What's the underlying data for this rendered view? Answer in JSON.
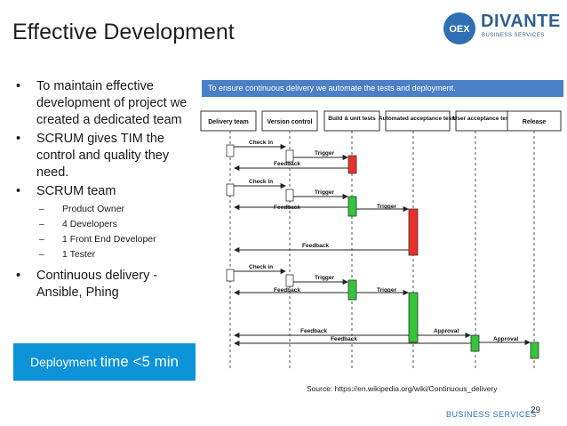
{
  "title": "Effective Development",
  "logo": {
    "mark": "OEX",
    "name": "DIVANTE",
    "tagline": "BUSINESS SERVICES"
  },
  "bullets": [
    "To maintain effective development of project we created a dedicated team",
    "SCRUM gives TIM the control and quality they need.",
    "SCRUM team"
  ],
  "sub_bullets": [
    "Product Owner",
    "4 Developers",
    "1 Front End Developer",
    "1 Tester"
  ],
  "bullet_last": "Continuous delivery - Ansible, Phing",
  "deploy": {
    "prefix": "Deployment",
    "suffix": "time <5 min"
  },
  "banner": "To ensure continuous delivery we automate the tests and deployment.",
  "diagram": {
    "lanes": [
      "Delivery team",
      "Version control",
      "Build & unit tests",
      "Automated acceptance tests",
      "User acceptance tests",
      "Release"
    ],
    "labels": {
      "checkin1": "Check in",
      "trigger1": "Trigger",
      "feedback1": "Feedback",
      "checkin2": "Check in",
      "trigger2": "Trigger",
      "feedback2": "Feedback",
      "trigger2b": "Trigger",
      "feedback2b": "Feedback",
      "checkin3": "Check in",
      "trigger3": "Trigger",
      "feedback3": "Feedback",
      "trigger3b": "Trigger",
      "feedback4": "Feedback",
      "approval1": "Approval",
      "feedback5": "Feedback",
      "approval2": "Approval"
    },
    "colors": {
      "fail": "#e8312a",
      "pass": "#34c53a",
      "banner": "#4b7fc6",
      "deploy": "#0d93d8"
    }
  },
  "source": "Source: https://en.wikipedia.org/wiki/Continuous_delivery",
  "footer": {
    "brand": "BUSINESS SERVICES",
    "page": "29"
  }
}
